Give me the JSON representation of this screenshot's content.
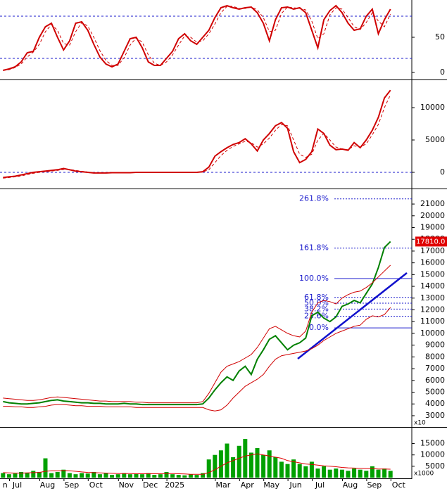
{
  "chart_data": [
    {
      "type": "line",
      "ylim": [
        -10,
        103
      ],
      "yticks": [
        0,
        50
      ],
      "guides": [
        20,
        80
      ],
      "guide_color": "#1a1acc",
      "series": [
        {
          "color": "#d00000",
          "dash": false,
          "values": [
            3,
            5,
            8,
            15,
            28,
            30,
            50,
            65,
            70,
            50,
            32,
            45,
            70,
            72,
            60,
            40,
            22,
            12,
            8,
            12,
            30,
            48,
            50,
            35,
            15,
            10,
            10,
            20,
            30,
            48,
            55,
            45,
            40,
            50,
            60,
            78,
            92,
            95,
            92,
            90,
            92,
            93,
            85,
            70,
            45,
            75,
            92,
            93,
            90,
            92,
            85,
            60,
            35,
            75,
            88,
            95,
            85,
            70,
            60,
            62,
            80,
            90,
            55,
            75,
            90,
            null,
            null,
            null
          ]
        },
        {
          "color": "#d00000",
          "dash": true,
          "values": [
            3,
            4,
            7,
            12,
            22,
            29,
            40,
            58,
            68,
            60,
            41,
            39,
            58,
            71,
            66,
            50,
            31,
            17,
            10,
            10,
            21,
            39,
            49,
            43,
            25,
            13,
            10,
            15,
            25,
            39,
            52,
            50,
            43,
            45,
            55,
            69,
            85,
            94,
            94,
            91,
            91,
            93,
            89,
            78,
            58,
            60,
            84,
            93,
            92,
            91,
            89,
            73,
            48,
            55,
            82,
            92,
            90,
            78,
            65,
            61,
            71,
            85,
            73,
            65,
            83,
            null,
            null,
            null
          ]
        }
      ]
    },
    {
      "type": "line",
      "ylim": [
        -2500,
        14130
      ],
      "yticks": [
        0,
        5000,
        10000
      ],
      "guides": [
        0
      ],
      "guide_color": "#1a1acc",
      "series": [
        {
          "color": "#d00000",
          "dash": false,
          "values": [
            -800,
            -700,
            -600,
            -400,
            -200,
            0,
            100,
            200,
            300,
            400,
            600,
            400,
            200,
            100,
            0,
            -100,
            -100,
            -100,
            -50,
            -50,
            -50,
            -50,
            0,
            0,
            0,
            0,
            0,
            0,
            0,
            0,
            0,
            0,
            0,
            100,
            800,
            2500,
            3200,
            3800,
            4300,
            4600,
            5200,
            4400,
            3300,
            5000,
            6000,
            7200,
            7700,
            6800,
            3200,
            1500,
            2000,
            3200,
            6700,
            6000,
            4200,
            3500,
            3600,
            3400,
            4600,
            3800,
            5000,
            6500,
            8500,
            11500,
            12700,
            null,
            null,
            null
          ]
        },
        {
          "color": "#d00000",
          "dash": true,
          "values": [
            -900,
            -800,
            -700,
            -550,
            -350,
            -150,
            0,
            100,
            200,
            300,
            450,
            450,
            300,
            150,
            50,
            -50,
            -80,
            -100,
            -80,
            -60,
            -50,
            -50,
            -30,
            -10,
            0,
            0,
            0,
            0,
            0,
            0,
            0,
            0,
            0,
            50,
            400,
            1500,
            2600,
            3400,
            4000,
            4400,
            4800,
            4600,
            3900,
            4400,
            5300,
            6500,
            7400,
            7200,
            5000,
            2800,
            2300,
            2800,
            5000,
            6000,
            5000,
            3900,
            3600,
            3500,
            4100,
            3900,
            4400,
            5800,
            7400,
            10000,
            12000,
            null,
            null,
            null
          ]
        }
      ]
    },
    {
      "type": "line",
      "ylim": [
        2040,
        22200
      ],
      "yticks": [
        3000,
        4000,
        5000,
        6000,
        7000,
        8000,
        9000,
        10000,
        11000,
        12000,
        13000,
        14000,
        15000,
        16000,
        17000,
        18000,
        19000,
        20000,
        21000
      ],
      "unit_label": "x10",
      "price_marker": {
        "value": 17810,
        "label": "17810.0",
        "color": "#e00000"
      },
      "fib_color": "#1a1acc",
      "fib_levels": [
        {
          "label": "261.8%",
          "value": 21440,
          "dash": true
        },
        {
          "label": "161.8%",
          "value": 17250,
          "dash": true
        },
        {
          "label": "100.0%",
          "value": 14660,
          "dash": false
        },
        {
          "label": "61.8%",
          "value": 13060,
          "dash": true
        },
        {
          "label": "50.0%",
          "value": 12565,
          "dash": true
        },
        {
          "label": "38.2%",
          "value": 12070,
          "dash": true
        },
        {
          "label": "23.6%",
          "value": 11460,
          "dash": true
        },
        {
          "label": "0.0%",
          "value": 10470,
          "dash": false
        }
      ],
      "series": [
        {
          "color": "#008000",
          "dash": false,
          "values": [
            4200,
            4100,
            4050,
            4000,
            4000,
            4050,
            4100,
            4200,
            4300,
            4350,
            4250,
            4200,
            4150,
            4100,
            4100,
            4050,
            4050,
            4000,
            4000,
            4000,
            4050,
            4000,
            4000,
            3950,
            3950,
            3950,
            3950,
            3950,
            3950,
            3950,
            3950,
            3950,
            3950,
            4000,
            4500,
            5200,
            5800,
            6300,
            6000,
            6800,
            7200,
            6500,
            7800,
            8600,
            9500,
            9800,
            9200,
            8600,
            9000,
            9200,
            9600,
            11500,
            11800,
            11300,
            11000,
            11400,
            12300,
            12500,
            12800,
            12600,
            13400,
            14200,
            15600,
            17300,
            17810,
            null,
            null,
            null
          ]
        },
        {
          "color": "#d00000",
          "dash": false,
          "values": [
            4500,
            4450,
            4400,
            4350,
            4300,
            4300,
            4350,
            4450,
            4550,
            4600,
            4550,
            4500,
            4450,
            4400,
            4350,
            4300,
            4250,
            4250,
            4200,
            4200,
            4200,
            4200,
            4150,
            4150,
            4100,
            4100,
            4100,
            4100,
            4100,
            4100,
            4100,
            4100,
            4100,
            4200,
            4900,
            5800,
            6700,
            7200,
            7400,
            7600,
            7900,
            8200,
            8800,
            9600,
            10400,
            10600,
            10300,
            10000,
            9800,
            9700,
            10200,
            11800,
            12600,
            12800,
            12700,
            12500,
            13000,
            13300,
            13500,
            13600,
            13900,
            14300,
            14800,
            15300,
            15800,
            null,
            null,
            null
          ]
        },
        {
          "color": "#d00000",
          "dash": false,
          "values": [
            3800,
            3800,
            3750,
            3750,
            3700,
            3700,
            3750,
            3800,
            3900,
            3950,
            3950,
            3900,
            3850,
            3850,
            3800,
            3800,
            3800,
            3750,
            3750,
            3750,
            3750,
            3750,
            3700,
            3700,
            3700,
            3700,
            3700,
            3700,
            3700,
            3700,
            3700,
            3700,
            3700,
            3700,
            3500,
            3400,
            3500,
            3900,
            4500,
            5000,
            5500,
            5800,
            6100,
            6500,
            7200,
            7800,
            8100,
            8200,
            8300,
            8400,
            8500,
            8700,
            9000,
            9400,
            9700,
            10000,
            10200,
            10400,
            10600,
            10700,
            11200,
            11500,
            11400,
            11600,
            12200,
            null,
            null,
            null
          ]
        }
      ]
    },
    {
      "type": "bar",
      "ylim": [
        0,
        21360
      ],
      "yticks": [
        5000,
        10000,
        15000
      ],
      "unit_label": "x1000",
      "categories": [
        "n",
        null,
        "Jul",
        null,
        null,
        null,
        null,
        "Aug",
        null,
        null,
        null,
        "Sep",
        null,
        null,
        null,
        "Oct",
        null,
        null,
        null,
        null,
        "Nov",
        null,
        null,
        null,
        "Dec",
        null,
        null,
        null,
        "2025",
        null,
        null,
        null,
        null,
        null,
        null,
        null,
        "Mar",
        null,
        null,
        null,
        "Apr",
        null,
        null,
        null,
        "May",
        null,
        null,
        null,
        "Jun",
        null,
        null,
        null,
        "Jul",
        null,
        null,
        null,
        null,
        "Aug",
        null,
        null,
        null,
        "Sep",
        null,
        null,
        null,
        "Oct",
        null,
        null
      ],
      "series": [
        {
          "type": "bar",
          "color": "#00a000",
          "values": [
            2000,
            1500,
            1800,
            2500,
            2200,
            3000,
            2500,
            8500,
            2000,
            2500,
            3500,
            2000,
            1500,
            2000,
            1800,
            2500,
            1500,
            2000,
            1200,
            1500,
            2000,
            1500,
            1800,
            1500,
            2000,
            1200,
            1500,
            2500,
            1500,
            1200,
            1000,
            1500,
            1200,
            2000,
            8000,
            10000,
            12000,
            15000,
            9000,
            14000,
            17000,
            11000,
            13000,
            10000,
            12000,
            9000,
            7000,
            6000,
            8000,
            6000,
            5000,
            7000,
            4000,
            5000,
            3500,
            4000,
            3500,
            3000,
            4000,
            3500,
            3000,
            5000,
            3500,
            4000,
            3000,
            null,
            null,
            null
          ]
        },
        {
          "type": "line",
          "color": "#e00000",
          "dash": false,
          "values": [
            2200,
            2100,
            2000,
            2000,
            2100,
            2200,
            2300,
            2800,
            3000,
            3000,
            3100,
            3000,
            2800,
            2500,
            2300,
            2200,
            2100,
            2000,
            1900,
            1800,
            1800,
            1800,
            1700,
            1700,
            1700,
            1700,
            1700,
            1800,
            1800,
            1700,
            1600,
            1500,
            1500,
            1500,
            2200,
            3500,
            5000,
            6500,
            7500,
            8500,
            9500,
            10000,
            10500,
            10000,
            9500,
            9000,
            8500,
            7500,
            7000,
            6500,
            6000,
            5800,
            5500,
            5200,
            5000,
            4800,
            4500,
            4300,
            4200,
            4100,
            4000,
            4000,
            3800,
            3800,
            3700,
            null,
            null,
            null
          ]
        }
      ]
    }
  ]
}
